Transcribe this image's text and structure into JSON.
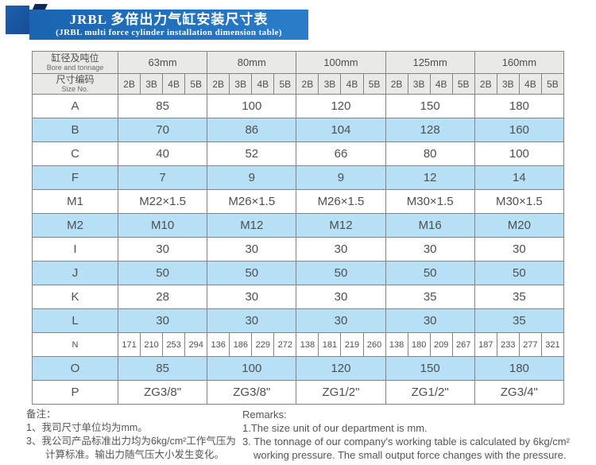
{
  "banner": {
    "title": "JRBL 多倍出力气缸安装尺寸表",
    "subtitle": "(JRBL multi force cylinder installation dimension table)"
  },
  "table": {
    "corner": {
      "bore_cn": "缸径及吨位",
      "bore_en": "Bore and tonnage",
      "size_cn": "尺寸编码",
      "size_en": "Size No."
    },
    "groups": [
      "63mm",
      "80mm",
      "100mm",
      "125mm",
      "160mm"
    ],
    "sub_columns": [
      "2B",
      "3B",
      "4B",
      "5B"
    ],
    "rows": [
      {
        "label": "A",
        "type": "merged",
        "shaded": false,
        "values": [
          "85",
          "100",
          "120",
          "150",
          "180"
        ]
      },
      {
        "label": "B",
        "type": "merged",
        "shaded": true,
        "values": [
          "70",
          "86",
          "104",
          "128",
          "160"
        ]
      },
      {
        "label": "C",
        "type": "merged",
        "shaded": false,
        "values": [
          "40",
          "52",
          "66",
          "80",
          "100"
        ]
      },
      {
        "label": "F",
        "type": "merged",
        "shaded": true,
        "values": [
          "7",
          "9",
          "9",
          "12",
          "14"
        ]
      },
      {
        "label": "M1",
        "type": "merged",
        "shaded": false,
        "values": [
          "M22×1.5",
          "M26×1.5",
          "M26×1.5",
          "M30×1.5",
          "M30×1.5"
        ]
      },
      {
        "label": "M2",
        "type": "merged",
        "shaded": true,
        "values": [
          "M10",
          "M12",
          "M12",
          "M16",
          "M20"
        ]
      },
      {
        "label": "I",
        "type": "merged",
        "shaded": false,
        "values": [
          "30",
          "30",
          "30",
          "30",
          "30"
        ]
      },
      {
        "label": "J",
        "type": "merged",
        "shaded": true,
        "values": [
          "50",
          "50",
          "50",
          "50",
          "50"
        ]
      },
      {
        "label": "K",
        "type": "merged",
        "shaded": false,
        "values": [
          "28",
          "30",
          "30",
          "35",
          "35"
        ]
      },
      {
        "label": "L",
        "type": "merged",
        "shaded": true,
        "values": [
          "30",
          "30",
          "30",
          "30",
          "35"
        ]
      },
      {
        "label": "N",
        "type": "per-column",
        "shaded": false,
        "values": [
          "171",
          "210",
          "253",
          "294",
          "136",
          "186",
          "229",
          "272",
          "138",
          "181",
          "219",
          "260",
          "138",
          "180",
          "209",
          "267",
          "187",
          "233",
          "277",
          "321"
        ]
      },
      {
        "label": "O",
        "type": "merged",
        "shaded": true,
        "values": [
          "85",
          "100",
          "120",
          "150",
          "180"
        ]
      },
      {
        "label": "P",
        "type": "merged",
        "shaded": false,
        "values": [
          "ZG3/8\"",
          "ZG3/8\"",
          "ZG1/2\"",
          "ZG1/2\"",
          "ZG3/4\""
        ]
      }
    ]
  },
  "notes": {
    "cn_title": "备注：",
    "cn_items": [
      "1、我司尺寸单位均为mm。",
      "3、我公司产品标准出力均为6kg/cm²工作气压为计算标准。输出力随气压大小发生变化。"
    ],
    "en_title": "Remarks:",
    "en_items": [
      "1.The size unit of our department is mm.",
      "3. The tonnage of our company's working table is calculated by 6kg/cm² working pressure. The small output force changes with the pressure."
    ]
  },
  "colors": {
    "banner_blue": "#1e6fc0",
    "square_blue": "#1b5aa6",
    "fold_navy": "#0d2b52",
    "row_blue": "#b7e0f6",
    "header_gray": "#e9e9e5",
    "border_gray": "#848484",
    "text_gray": "#4f4f4f"
  }
}
